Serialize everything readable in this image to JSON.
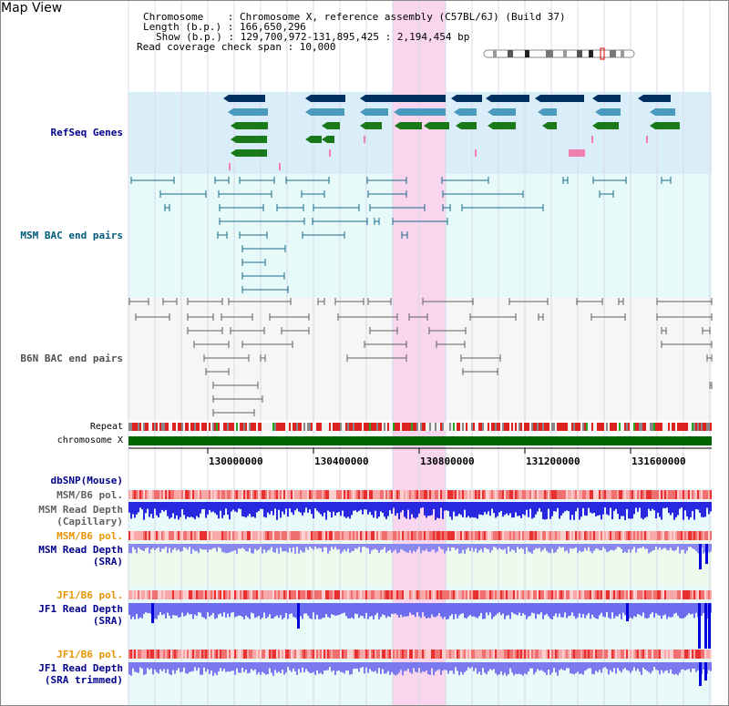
{
  "header": {
    "title": "Map View",
    "chromosome_line": "Chromosome    : Chromosome X, reference assembly (C57BL/6J) (Build 37)",
    "length_line": "Length (b.p.) : 166,650,296",
    "show_line": "Show (b.p.) : 129,700,972-131,895,425 : 2,194,454 bp",
    "coverage_line": "Read coverage check span : 10,000"
  },
  "tracks": {
    "refseq": "RefSeq Genes",
    "msm_bac": "MSM BAC end pairs",
    "b6n_bac": "B6N BAC end pairs",
    "repeat": "Repeat",
    "chromosome": "chromosome X",
    "dbsnp": "dbSNP(Mouse)",
    "msm_b6_pol_1": "MSM/B6 pol.",
    "msm_depth_cap_1": "MSM Read Depth",
    "msm_depth_cap_2": "(Capillary)",
    "msm_b6_pol_2": "MSM/B6 pol.",
    "msm_depth_sra_1": "MSM Read Depth",
    "msm_depth_sra_2": "(SRA)",
    "jf1_b6_pol_1": "JF1/B6 pol.",
    "jf1_depth_sra_1": "JF1 Read Depth",
    "jf1_depth_sra_2": "(SRA)",
    "jf1_b6_pol_2": "JF1/B6 pol.",
    "jf1_depth_trim_1": "JF1 Read Depth",
    "jf1_depth_trim_2": "(SRA trimmed)"
  },
  "axis_ticks": [
    "130000000",
    "130400000",
    "130800000",
    "131200000",
    "131600000"
  ],
  "colors": {
    "refseq_bg": "#daeefa",
    "msm_bac_bg": "#e6fafa",
    "b6n_bac_bg": "#f6f6f6",
    "highlight": "#f9d6ee",
    "label_blue": "#00008b",
    "label_teal": "#005a7a",
    "label_orange": "#e69500",
    "chromosome_green": "#006400"
  }
}
